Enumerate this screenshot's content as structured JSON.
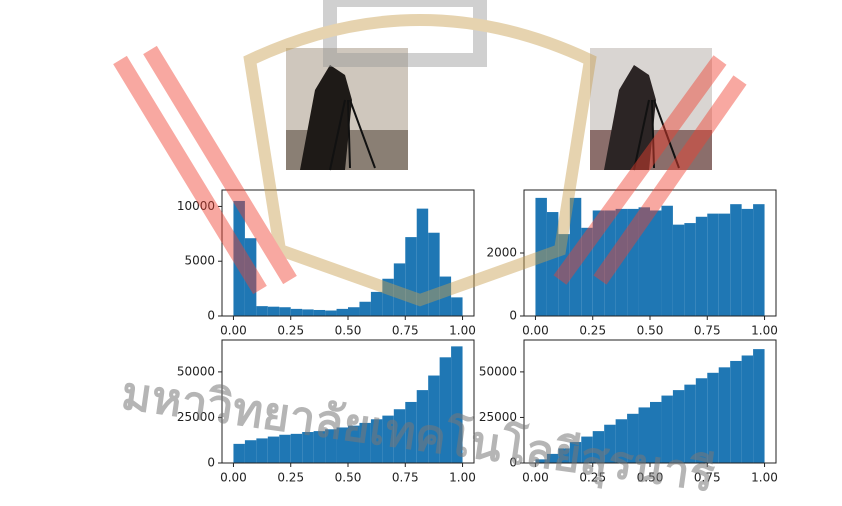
{
  "chart_data": [
    {
      "type": "histogram",
      "color": "#1f77b4",
      "bins": [
        0,
        0.05,
        0.1,
        0.15,
        0.2,
        0.25,
        0.3,
        0.35,
        0.4,
        0.45,
        0.5,
        0.55,
        0.6,
        0.65,
        0.7,
        0.75,
        0.8,
        0.85,
        0.9,
        0.95,
        1.0
      ],
      "values": [
        10500,
        7100,
        900,
        850,
        800,
        650,
        600,
        550,
        500,
        650,
        800,
        1300,
        2200,
        3400,
        4800,
        7200,
        9800,
        7600,
        3600,
        1700
      ],
      "xlim": [
        -0.05,
        1.05
      ],
      "ylim": [
        0,
        11500
      ],
      "xticks": [
        {
          "value": 0,
          "label": "0.00"
        },
        {
          "value": 0.25,
          "label": "0.25"
        },
        {
          "value": 0.5,
          "label": "0.50"
        },
        {
          "value": 0.75,
          "label": "0.75"
        },
        {
          "value": 1,
          "label": "1.00"
        }
      ],
      "yticks": [
        0,
        5000,
        10000
      ]
    },
    {
      "type": "histogram",
      "color": "#1f77b4",
      "bins": [
        0,
        0.05,
        0.1,
        0.15,
        0.2,
        0.25,
        0.3,
        0.35,
        0.4,
        0.45,
        0.5,
        0.55,
        0.6,
        0.65,
        0.7,
        0.75,
        0.8,
        0.85,
        0.9,
        0.95,
        1.0
      ],
      "values": [
        3750,
        3300,
        2600,
        3750,
        2800,
        3350,
        3350,
        3400,
        3400,
        3450,
        3350,
        3500,
        2900,
        2950,
        3150,
        3250,
        3250,
        3550,
        3400,
        3550
      ],
      "xlim": [
        -0.05,
        1.05
      ],
      "ylim": [
        0,
        4000
      ],
      "xticks": [
        {
          "value": 0,
          "label": "0.00"
        },
        {
          "value": 0.25,
          "label": "0.25"
        },
        {
          "value": 0.5,
          "label": "0.50"
        },
        {
          "value": 0.75,
          "label": "0.75"
        },
        {
          "value": 1,
          "label": "1.00"
        }
      ],
      "yticks": [
        0,
        2000
      ]
    },
    {
      "type": "histogram",
      "color": "#1f77b4",
      "bins": [
        0,
        0.05,
        0.1,
        0.15,
        0.2,
        0.25,
        0.3,
        0.35,
        0.4,
        0.45,
        0.5,
        0.55,
        0.6,
        0.65,
        0.7,
        0.75,
        0.8,
        0.85,
        0.9,
        0.95,
        1.0
      ],
      "values": [
        10500,
        12500,
        13500,
        14500,
        15500,
        16000,
        17000,
        17500,
        18500,
        19500,
        20500,
        22000,
        24000,
        26000,
        29500,
        33500,
        40000,
        48000,
        58000,
        64000
      ],
      "xlim": [
        -0.05,
        1.05
      ],
      "ylim": [
        0,
        67500
      ],
      "xticks": [
        {
          "value": 0,
          "label": "0.00"
        },
        {
          "value": 0.25,
          "label": "0.25"
        },
        {
          "value": 0.5,
          "label": "0.50"
        },
        {
          "value": 0.75,
          "label": "0.75"
        },
        {
          "value": 1,
          "label": "1.00"
        }
      ],
      "yticks": [
        0,
        25000,
        50000
      ]
    },
    {
      "type": "histogram",
      "color": "#1f77b4",
      "bins": [
        0,
        0.05,
        0.1,
        0.15,
        0.2,
        0.25,
        0.3,
        0.35,
        0.4,
        0.45,
        0.5,
        0.55,
        0.6,
        0.65,
        0.7,
        0.75,
        0.8,
        0.85,
        0.9,
        0.95,
        1.0
      ],
      "values": [
        2000,
        5000,
        8000,
        11500,
        14500,
        17500,
        21000,
        24000,
        27000,
        30500,
        33500,
        37000,
        40000,
        43000,
        46500,
        49500,
        52500,
        56000,
        59000,
        62500
      ],
      "xlim": [
        -0.05,
        1.05
      ],
      "ylim": [
        0,
        67500
      ],
      "xticks": [
        {
          "value": 0,
          "label": "0.00"
        },
        {
          "value": 0.25,
          "label": "0.25"
        },
        {
          "value": 0.5,
          "label": "0.50"
        },
        {
          "value": 0.75,
          "label": "0.75"
        },
        {
          "value": 1,
          "label": "1.00"
        }
      ],
      "yticks": [
        0,
        25000,
        50000
      ]
    }
  ],
  "watermark": {
    "text": "มหาวิทยาลัยเทคโนโลยีสุรนารี"
  }
}
